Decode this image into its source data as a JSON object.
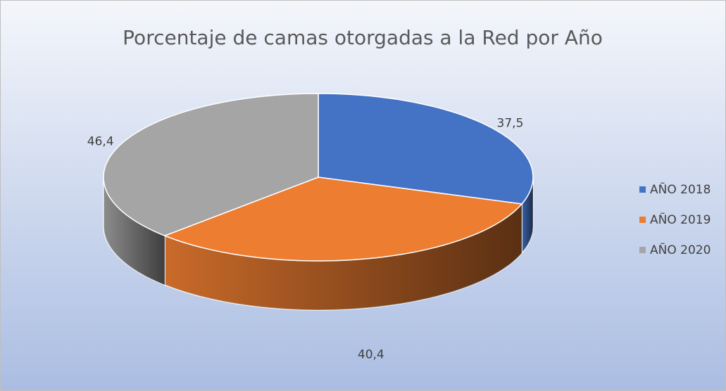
{
  "chart_data": {
    "type": "pie",
    "title": "Porcentaje de camas otorgadas a la Red por Año",
    "categories": [
      "AÑO 2018",
      "AÑO 2019",
      "AÑO 2020"
    ],
    "values": [
      37.5,
      40.4,
      46.4
    ],
    "value_labels": [
      "37,5",
      "40,4",
      "46,4"
    ],
    "colors": [
      "#4472c4",
      "#ed7d31",
      "#a5a5a5"
    ],
    "legend": "right"
  }
}
